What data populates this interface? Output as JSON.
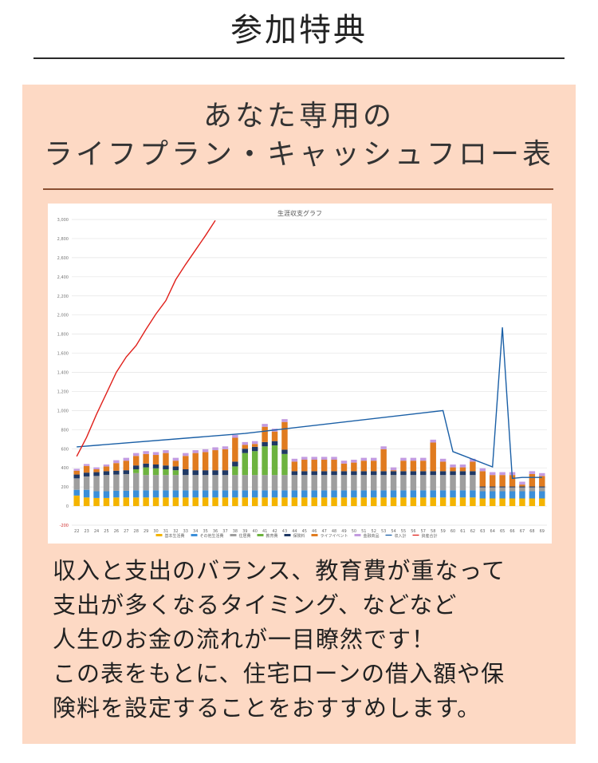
{
  "page": {
    "title": "参加特典",
    "heading_line1": "あなた専用の",
    "heading_line2": "ライフプラン・キャッシュフロー表",
    "body_lines": [
      "収入と支出のバランス、教育費が重なって",
      "支出が多くなるタイミング、などなど",
      "人生のお金の流れが一目瞭然です！",
      "この表をもとに、住宅ローンの借入額や保",
      "険料を設定することをおすすめします。"
    ]
  },
  "chart_data": {
    "type": "bar",
    "stacked": true,
    "title": "生涯収支グラフ",
    "grid": true,
    "legend_position": "bottom",
    "ylim": [
      -200,
      3000
    ],
    "y_ticks": [
      -200,
      0,
      200,
      400,
      600,
      800,
      1000,
      1200,
      1400,
      1600,
      1800,
      2000,
      2200,
      2400,
      2600,
      2800,
      3000
    ],
    "categories": [
      "22",
      "23",
      "24",
      "25",
      "26",
      "27",
      "28",
      "29",
      "30",
      "31",
      "32",
      "33",
      "34",
      "35",
      "36",
      "37",
      "38",
      "39",
      "40",
      "41",
      "42",
      "43",
      "44",
      "45",
      "46",
      "47",
      "48",
      "49",
      "50",
      "51",
      "52",
      "53",
      "54",
      "55",
      "56",
      "57",
      "58",
      "59",
      "60",
      "61",
      "62",
      "63",
      "64",
      "65",
      "66",
      "67",
      "68",
      "69"
    ],
    "series": [
      {
        "name": "基本生活費",
        "color": "#f4b400",
        "values": [
          110,
          90,
          85,
          85,
          90,
          90,
          90,
          90,
          90,
          90,
          90,
          90,
          90,
          90,
          90,
          90,
          90,
          90,
          90,
          90,
          90,
          90,
          90,
          90,
          90,
          90,
          90,
          90,
          90,
          90,
          90,
          90,
          90,
          90,
          90,
          90,
          90,
          90,
          90,
          90,
          90,
          80,
          80,
          80,
          80,
          80,
          80,
          80
        ]
      },
      {
        "name": "その他生活費",
        "color": "#3b8fd9",
        "values": [
          60,
          80,
          70,
          70,
          70,
          70,
          75,
          75,
          75,
          75,
          75,
          75,
          75,
          75,
          75,
          75,
          75,
          75,
          75,
          75,
          75,
          75,
          75,
          75,
          75,
          75,
          75,
          75,
          75,
          75,
          75,
          75,
          75,
          75,
          75,
          75,
          75,
          75,
          75,
          75,
          75,
          75,
          75,
          75,
          75,
          75,
          75,
          75
        ]
      },
      {
        "name": "住居費",
        "color": "#9e9e9e",
        "values": [
          120,
          140,
          160,
          170,
          170,
          175,
          180,
          160,
          160,
          160,
          160,
          160,
          160,
          160,
          160,
          160,
          160,
          160,
          160,
          160,
          160,
          160,
          160,
          160,
          160,
          160,
          160,
          160,
          160,
          160,
          160,
          160,
          160,
          160,
          160,
          160,
          160,
          160,
          160,
          160,
          160,
          40,
          40,
          40,
          40,
          40,
          40,
          40
        ]
      },
      {
        "name": "教育費",
        "color": "#6db33f",
        "values": [
          0,
          0,
          0,
          0,
          0,
          0,
          40,
          80,
          70,
          60,
          50,
          0,
          0,
          0,
          0,
          0,
          90,
          230,
          250,
          300,
          310,
          220,
          0,
          0,
          0,
          0,
          0,
          0,
          0,
          0,
          0,
          0,
          0,
          0,
          0,
          0,
          0,
          0,
          0,
          0,
          0,
          0,
          0,
          0,
          0,
          0,
          0,
          0
        ]
      },
      {
        "name": "保険料",
        "color": "#1f3864",
        "values": [
          40,
          40,
          40,
          40,
          40,
          40,
          40,
          40,
          40,
          40,
          40,
          60,
          50,
          50,
          50,
          50,
          50,
          45,
          45,
          45,
          45,
          45,
          40,
          40,
          40,
          40,
          40,
          40,
          40,
          40,
          40,
          40,
          40,
          40,
          40,
          40,
          40,
          40,
          40,
          40,
          40,
          10,
          10,
          10,
          10,
          10,
          10,
          10
        ]
      },
      {
        "name": "ライフイベント",
        "color": "#e07b1f",
        "values": [
          40,
          70,
          30,
          50,
          80,
          100,
          100,
          100,
          100,
          130,
          60,
          140,
          180,
          190,
          210,
          220,
          250,
          40,
          30,
          160,
          100,
          290,
          100,
          120,
          120,
          120,
          120,
          80,
          90,
          110,
          110,
          230,
          10,
          110,
          110,
          110,
          300,
          100,
          40,
          40,
          100,
          160,
          120,
          120,
          120,
          20,
          130,
          110
        ]
      },
      {
        "name": "金融商品",
        "color": "#c39be0",
        "values": [
          20,
          20,
          20,
          20,
          30,
          30,
          30,
          30,
          30,
          30,
          30,
          30,
          30,
          30,
          30,
          30,
          30,
          30,
          30,
          30,
          30,
          30,
          30,
          30,
          30,
          30,
          30,
          30,
          30,
          30,
          30,
          30,
          30,
          30,
          30,
          30,
          30,
          30,
          30,
          30,
          30,
          30,
          30,
          30,
          30,
          30,
          30,
          30
        ]
      }
    ],
    "lines": [
      {
        "name": "収入計",
        "color": "#1a5fa6",
        "x": [
          "22",
          "39",
          "59",
          "60",
          "64",
          "65",
          "66",
          "67",
          "69"
        ],
        "values": [
          620,
          760,
          1000,
          570,
          410,
          1870,
          290,
          300,
          300
        ]
      },
      {
        "name": "資産合計",
        "color": "#e0201b",
        "x": [
          "22",
          "23",
          "24",
          "25",
          "26",
          "27",
          "28",
          "29",
          "30",
          "31",
          "32",
          "33",
          "34",
          "35",
          "36"
        ],
        "values": [
          520,
          720,
          960,
          1180,
          1400,
          1560,
          1680,
          1850,
          2010,
          2150,
          2370,
          2530,
          2680,
          2830,
          2990
        ]
      }
    ]
  }
}
